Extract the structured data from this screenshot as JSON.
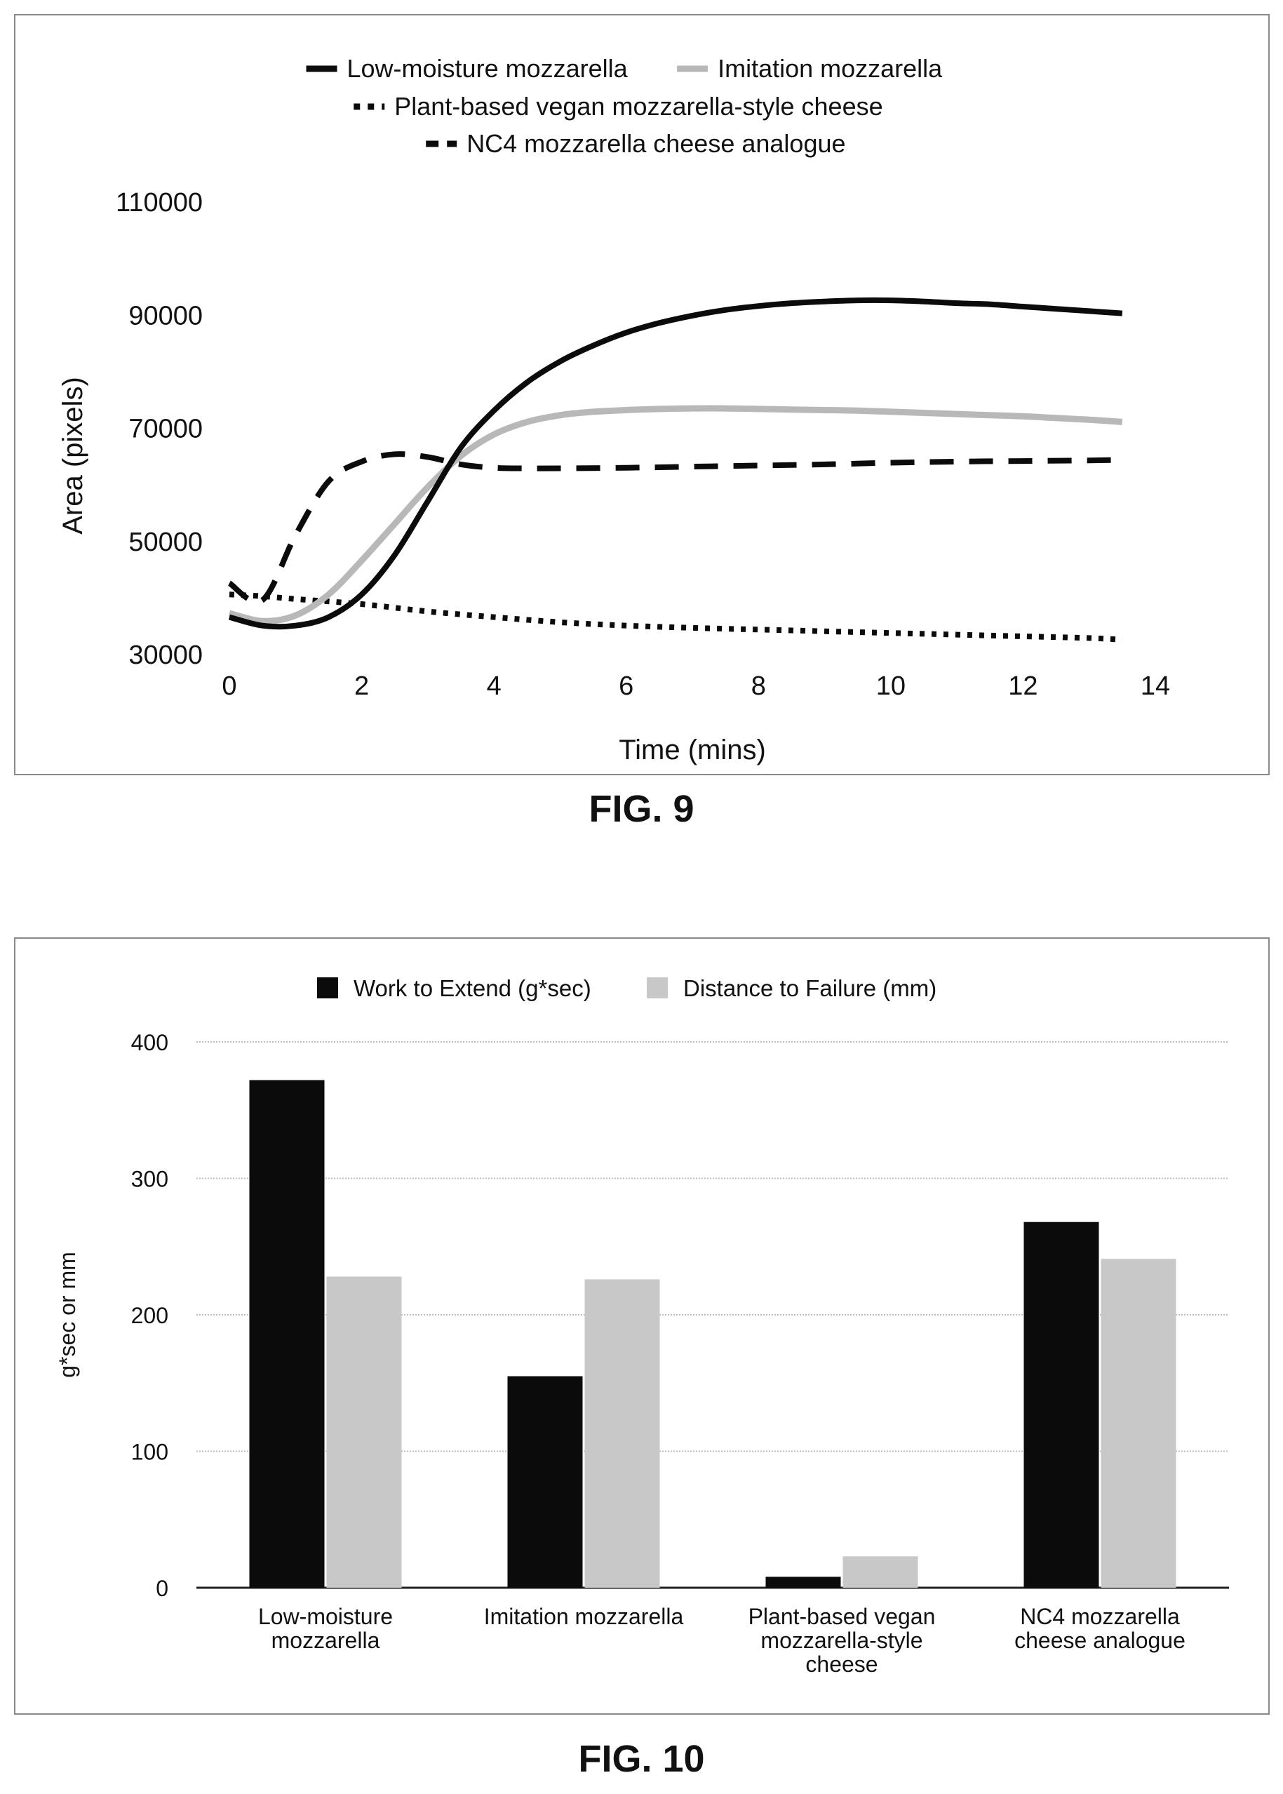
{
  "figures": {
    "fig9_caption": "FIG. 9",
    "fig10_caption": "FIG. 10"
  },
  "colors": {
    "black": "#0b0b0b",
    "light_gray": "#b8b8b8",
    "grid": "#bdbdbd",
    "axis": "#222222"
  },
  "chart_data": [
    {
      "type": "line",
      "xlabel": "Time (mins)",
      "ylabel": "Area (pixels)",
      "xlim": [
        0,
        14
      ],
      "ylim": [
        30000,
        110000
      ],
      "x_ticks": [
        "0",
        "2",
        "4",
        "6",
        "8",
        "10",
        "12",
        "14"
      ],
      "y_ticks": [
        "30000",
        "50000",
        "70000",
        "90000",
        "110000"
      ],
      "grid": false,
      "legend_position": "top",
      "series": [
        {
          "name": "Low-moisture mozzarella",
          "style": "solid",
          "color": "#0b0b0b",
          "x": [
            0,
            0.5,
            1,
            1.5,
            2,
            2.5,
            3,
            3.5,
            4,
            4.5,
            5,
            5.5,
            6,
            6.5,
            7,
            7.5,
            8,
            8.5,
            9,
            9.5,
            10,
            10.5,
            11,
            11.5,
            12,
            12.5,
            13,
            13.5
          ],
          "y": [
            36500,
            35000,
            35000,
            36500,
            40500,
            47500,
            57000,
            66500,
            73000,
            78000,
            81700,
            84500,
            86800,
            88500,
            89800,
            90800,
            91500,
            92000,
            92300,
            92500,
            92500,
            92300,
            92000,
            91800,
            91400,
            91000,
            90600,
            90200
          ]
        },
        {
          "name": "Imitation mozzarella",
          "style": "solid",
          "color": "#b8b8b8",
          "x": [
            0,
            0.5,
            1,
            1.5,
            2,
            2.5,
            3,
            3.5,
            4,
            4.5,
            5,
            5.5,
            6,
            6.5,
            7,
            7.5,
            8,
            8.5,
            9,
            9.5,
            10,
            10.5,
            11,
            11.5,
            12,
            12.5,
            13,
            13.5
          ],
          "y": [
            37200,
            35800,
            36800,
            40500,
            46500,
            53000,
            59500,
            65000,
            68800,
            71000,
            72200,
            72800,
            73100,
            73300,
            73400,
            73400,
            73300,
            73200,
            73100,
            73000,
            72800,
            72600,
            72400,
            72200,
            72000,
            71700,
            71400,
            71000
          ]
        },
        {
          "name": "Plant-based vegan mozzarella-style cheese",
          "style": "dotted",
          "color": "#0b0b0b",
          "x": [
            0,
            0.5,
            1,
            2,
            3,
            4,
            5,
            6,
            7,
            8,
            9,
            10,
            11,
            12,
            13,
            13.5
          ],
          "y": [
            40500,
            40200,
            39700,
            38800,
            37500,
            36500,
            35600,
            35000,
            34600,
            34300,
            34000,
            33700,
            33400,
            33100,
            32800,
            32500
          ]
        },
        {
          "name": "NC4 mozzarella cheese analogue",
          "style": "dashed",
          "color": "#0b0b0b",
          "x": [
            0,
            0.5,
            1,
            1.5,
            2,
            2.5,
            3,
            3.5,
            4,
            4.5,
            5,
            6,
            7,
            8,
            9,
            10,
            11,
            12,
            13,
            13.5
          ],
          "y": [
            42500,
            39500,
            51000,
            60500,
            64000,
            65300,
            64800,
            63500,
            62900,
            62800,
            62800,
            62900,
            63100,
            63300,
            63500,
            63800,
            64000,
            64100,
            64200,
            64300
          ]
        }
      ]
    },
    {
      "type": "bar",
      "xlabel": "",
      "ylabel": "g*sec or mm",
      "ylim": [
        0,
        400
      ],
      "y_ticks": [
        "0",
        "100",
        "200",
        "300",
        "400"
      ],
      "grid": true,
      "legend_position": "top",
      "categories": [
        [
          "Low-moisture",
          "mozzarella"
        ],
        [
          "Imitation mozzarella"
        ],
        [
          "Plant-based vegan",
          "mozzarella-style",
          "cheese"
        ],
        [
          "NC4 mozzarella",
          "cheese analogue"
        ]
      ],
      "series": [
        {
          "name": "Work to Extend (g*sec)",
          "color": "#0b0b0b",
          "values": [
            372,
            155,
            8,
            268
          ]
        },
        {
          "name": "Distance to Failure (mm)",
          "color": "#c8c8c8",
          "values": [
            228,
            226,
            23,
            241
          ]
        }
      ]
    }
  ]
}
